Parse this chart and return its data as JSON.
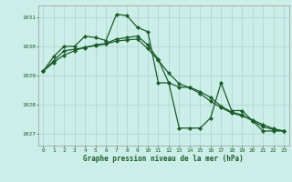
{
  "title": "Graphe pression niveau de la mer (hPa)",
  "bg_color": "#cceee8",
  "line_color": "#1a5c2a",
  "grid_color": "#aad4cc",
  "text_color": "#1a5c2a",
  "xlim": [
    -0.5,
    23.5
  ],
  "ylim": [
    1026.6,
    1031.4
  ],
  "yticks": [
    1027,
    1028,
    1029,
    1030,
    1031
  ],
  "xticks": [
    0,
    1,
    2,
    3,
    4,
    5,
    6,
    7,
    8,
    9,
    10,
    11,
    12,
    13,
    14,
    15,
    16,
    17,
    18,
    19,
    20,
    21,
    22,
    23
  ],
  "series1_x": [
    0,
    1,
    2,
    3,
    4,
    5,
    6,
    7,
    8,
    9,
    10,
    11,
    12,
    13,
    14,
    15,
    16,
    17,
    18,
    19,
    20,
    21,
    22,
    23
  ],
  "series1_y": [
    1029.15,
    1029.65,
    1030.0,
    1030.0,
    1030.35,
    1030.3,
    1030.2,
    1031.1,
    1031.05,
    1030.65,
    1030.5,
    1028.75,
    1028.75,
    1027.2,
    1027.2,
    1027.2,
    1027.55,
    1028.75,
    1027.8,
    1027.8,
    1027.45,
    1027.1,
    1027.1,
    1027.1
  ],
  "series2_x": [
    0,
    1,
    2,
    3,
    4,
    5,
    6,
    7,
    8,
    9,
    10,
    11,
    12,
    13,
    14,
    15,
    16,
    17,
    18,
    19,
    20,
    21,
    22,
    23
  ],
  "series2_y": [
    1029.15,
    1029.5,
    1029.85,
    1029.9,
    1029.95,
    1030.05,
    1030.1,
    1030.25,
    1030.3,
    1030.35,
    1030.05,
    1029.55,
    1028.75,
    1028.6,
    1028.6,
    1028.45,
    1028.25,
    1027.95,
    1027.75,
    1027.65,
    1027.45,
    1027.25,
    1027.15,
    1027.1
  ],
  "series3_x": [
    0,
    1,
    2,
    3,
    4,
    5,
    6,
    7,
    8,
    9,
    10,
    11,
    12,
    13,
    14,
    15,
    16,
    17,
    18,
    19,
    20,
    21,
    22,
    23
  ],
  "series3_y": [
    1029.15,
    1029.45,
    1029.7,
    1029.85,
    1029.98,
    1030.02,
    1030.08,
    1030.18,
    1030.22,
    1030.25,
    1029.92,
    1029.52,
    1029.08,
    1028.72,
    1028.58,
    1028.38,
    1028.12,
    1027.9,
    1027.72,
    1027.62,
    1027.48,
    1027.32,
    1027.18,
    1027.1
  ],
  "marker": "D",
  "markersize": 2.2,
  "linewidth": 0.9
}
